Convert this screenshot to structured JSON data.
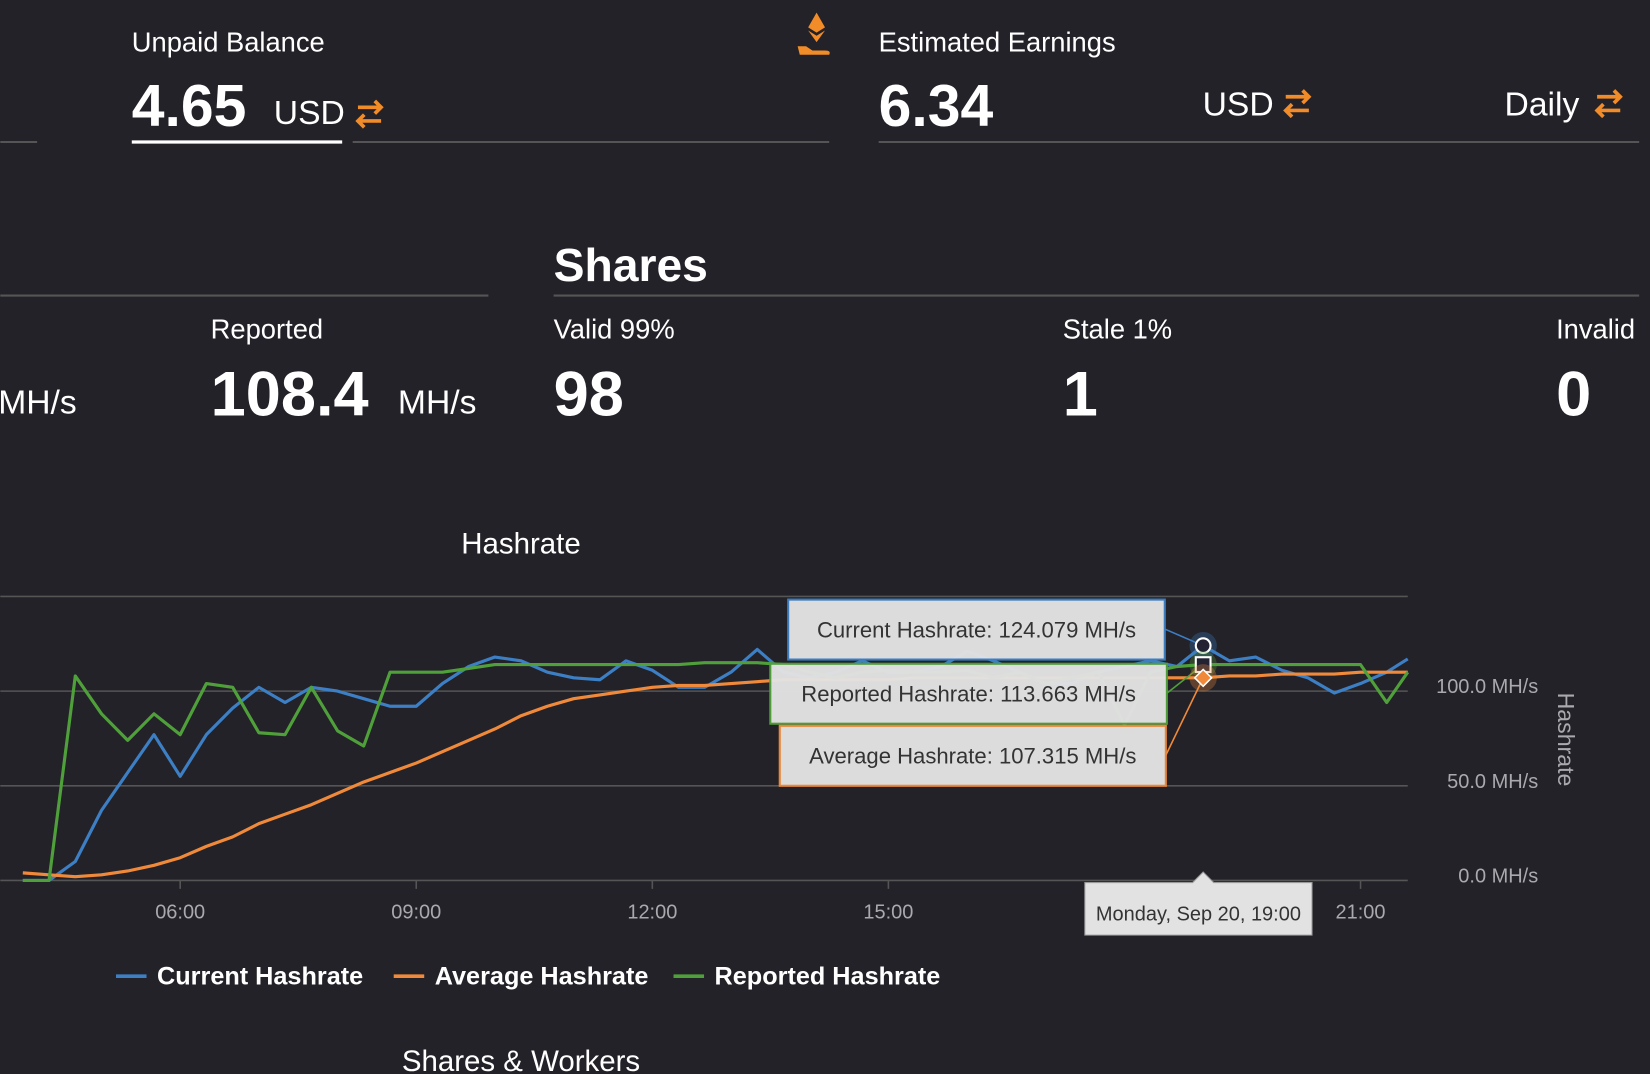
{
  "balance": {
    "label": "Unpaid Balance",
    "amount": "4.65",
    "currency": "USD"
  },
  "earnings": {
    "label": "Estimated Earnings",
    "amount": "6.34",
    "currency": "USD",
    "period": "Daily"
  },
  "hashrate": {
    "current_unit": "MH/s",
    "reported_label": "Reported",
    "reported_value": "108.4",
    "reported_unit": "MH/s"
  },
  "shares": {
    "title": "Shares",
    "valid_label": "Valid 99%",
    "valid": "98",
    "stale_label": "Stale 1%",
    "stale": "1",
    "invalid_label": "Invalid",
    "invalid": "0"
  },
  "chart_data": {
    "type": "line",
    "title": "Hashrate",
    "y_axis_label": "Hashrate",
    "x": [
      4,
      4.333,
      4.667,
      5,
      5.333,
      5.667,
      6,
      6.333,
      6.667,
      7,
      7.333,
      7.667,
      8,
      8.333,
      8.667,
      9,
      9.333,
      9.667,
      10,
      10.333,
      10.667,
      11,
      11.333,
      11.667,
      12,
      12.333,
      12.667,
      13,
      13.333,
      13.667,
      14,
      14.333,
      14.667,
      15,
      15.333,
      15.667,
      16,
      16.333,
      16.667,
      17,
      17.333,
      17.667,
      18,
      18.333,
      18.667,
      19,
      19.333,
      19.667,
      20,
      20.333,
      20.667,
      21,
      21.333,
      21.6
    ],
    "xlim": [
      3.714,
      21.6
    ],
    "xticks": [
      {
        "value": 6,
        "label": "06:00"
      },
      {
        "value": 9,
        "label": "09:00"
      },
      {
        "value": 12,
        "label": "12:00"
      },
      {
        "value": 15,
        "label": "15:00"
      },
      {
        "value": 21,
        "label": "21:00"
      }
    ],
    "ylim": [
      0,
      150
    ],
    "yticks": [
      {
        "value": 0,
        "label": "0.0 MH/s"
      },
      {
        "value": 50,
        "label": "50.0 MH/s"
      },
      {
        "value": 100,
        "label": "100.0 MH/s"
      }
    ],
    "grid": true,
    "series": [
      {
        "name": "Current Hashrate",
        "color": "#3d7fc4",
        "values": [
          0,
          0,
          10,
          37,
          57,
          77,
          55,
          77,
          91,
          102,
          94,
          102,
          100,
          96,
          92,
          92,
          104,
          113,
          118,
          116,
          110,
          107,
          106,
          116,
          111,
          102,
          102,
          110,
          122,
          110,
          107,
          110,
          116,
          110,
          110,
          113,
          121,
          116,
          110,
          104,
          104,
          110,
          113,
          116,
          113,
          124,
          116,
          118,
          111,
          107,
          99,
          104,
          110,
          117
        ]
      },
      {
        "name": "Average Hashrate",
        "color": "#f08a3a",
        "values": [
          4,
          3,
          2,
          3,
          5,
          8,
          12,
          18,
          23,
          30,
          35,
          40,
          46,
          52,
          57,
          62,
          68,
          74,
          80,
          87,
          92,
          96,
          98,
          100,
          102,
          103,
          103,
          104,
          105,
          106,
          106,
          106,
          106,
          106,
          107,
          107,
          107,
          107,
          107,
          107,
          107,
          107,
          107,
          107,
          107,
          107,
          108,
          108,
          109,
          109,
          109,
          110,
          110,
          110
        ]
      },
      {
        "name": "Reported Hashrate",
        "color": "#4fa03a",
        "values": [
          0,
          0,
          108,
          88,
          74,
          88,
          77,
          104,
          102,
          78,
          77,
          102,
          79,
          71,
          110,
          110,
          110,
          112,
          114,
          114,
          114,
          114,
          114,
          114,
          114,
          114,
          115,
          115,
          115,
          114,
          110,
          107,
          110,
          111,
          110,
          110,
          111,
          107,
          110,
          104,
          107,
          110,
          82,
          110,
          113,
          114,
          114,
          114,
          114,
          114,
          114,
          114,
          94,
          110
        ]
      }
    ],
    "tooltip": {
      "title": "Monday, Sep 20, 19:00",
      "lines": [
        "Current Hashrate: 124.079 MH/s",
        "Reported Hashrate: 113.663 MH/s",
        "Average Hashrate: 107.315 MH/s"
      ]
    }
  },
  "next_section": "Shares & Workers"
}
